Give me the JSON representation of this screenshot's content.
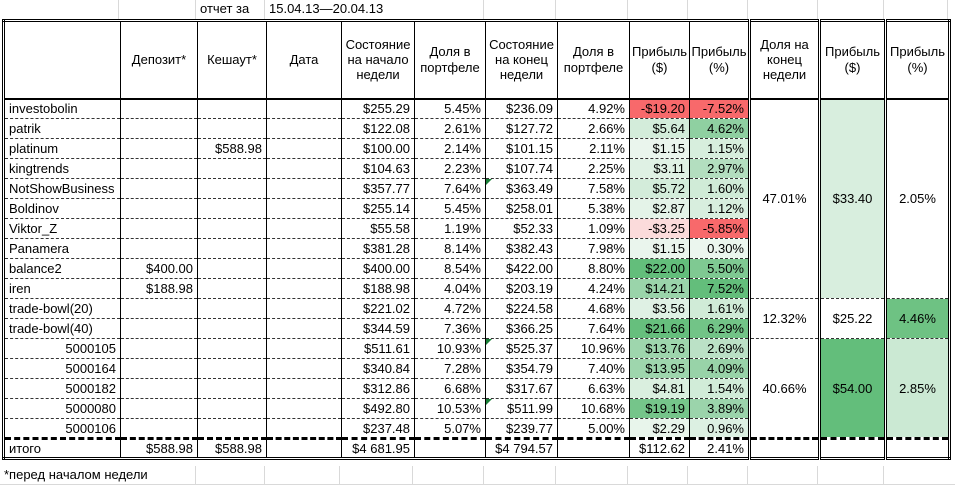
{
  "report": {
    "label": "отчет за",
    "period": "15.04.13—20.04.13"
  },
  "columns": [
    "Депозит*",
    "Кешаут*",
    "Дата",
    "Состояние на начало недели",
    "Доля в портфеле",
    "Состояние на конец недели",
    "Доля в портфеле",
    "Прибыль ($)",
    "Прибыль (%)",
    "Доля на конец недели",
    "Прибыль ($)",
    "Прибыль (%)"
  ],
  "rows": [
    {
      "name": "investobolin",
      "deposit": "",
      "cashout": "",
      "date": "",
      "begin": "$255.29",
      "begin_share": "5.45%",
      "end": "$236.09",
      "end_share": "4.92%",
      "profit_usd": "-$19.20",
      "profit_pct": "-7.52%",
      "usd_bg": "#F8696B",
      "pct_bg": "#F8696B",
      "name_right": false,
      "note_end": false
    },
    {
      "name": "patrik",
      "deposit": "",
      "cashout": "",
      "date": "",
      "begin": "$122.08",
      "begin_share": "2.61%",
      "end": "$127.72",
      "end_share": "2.66%",
      "profit_usd": "$5.64",
      "profit_pct": "4.62%",
      "usd_bg": "#D3ECDA",
      "pct_bg": "#8FD0A1",
      "name_right": false,
      "note_end": false
    },
    {
      "name": "platinum",
      "deposit": "",
      "cashout": "$588.98",
      "date": "",
      "begin": "$100.00",
      "begin_share": "2.14%",
      "end": "$101.15",
      "end_share": "2.11%",
      "profit_usd": "$1.15",
      "profit_pct": "1.15%",
      "usd_bg": "#EAF5ED",
      "pct_bg": "#D7EEDD",
      "name_right": false,
      "note_end": false
    },
    {
      "name": "kingtrends",
      "deposit": "",
      "cashout": "",
      "date": "",
      "begin": "$104.63",
      "begin_share": "2.23%",
      "end": "$107.74",
      "end_share": "2.25%",
      "profit_usd": "$3.11",
      "profit_pct": "2.97%",
      "usd_bg": "#DFF1E4",
      "pct_bg": "#B3DEBF",
      "name_right": false,
      "note_end": false
    },
    {
      "name": "NotShowBusiness",
      "deposit": "",
      "cashout": "",
      "date": "",
      "begin": "$357.77",
      "begin_share": "7.64%",
      "end": "$363.49",
      "end_share": "7.58%",
      "profit_usd": "$5.72",
      "profit_pct": "1.60%",
      "usd_bg": "#D3ECDA",
      "pct_bg": "#D0EBD7",
      "name_right": false,
      "note_end": true
    },
    {
      "name": "Boldinov",
      "deposit": "",
      "cashout": "",
      "date": "",
      "begin": "$255.14",
      "begin_share": "5.45%",
      "end": "$258.01",
      "end_share": "5.38%",
      "profit_usd": "$2.87",
      "profit_pct": "1.12%",
      "usd_bg": "#E4F3E8",
      "pct_bg": "#D8EEDE",
      "name_right": false,
      "note_end": false
    },
    {
      "name": "Viktor_Z",
      "deposit": "",
      "cashout": "",
      "date": "",
      "begin": "$55.58",
      "begin_share": "1.19%",
      "end": "$52.33",
      "end_share": "1.09%",
      "profit_usd": "-$3.25",
      "profit_pct": "-5.85%",
      "usd_bg": "#FBDBDB",
      "pct_bg": "#F8696B",
      "name_right": false,
      "note_end": false
    },
    {
      "name": "Panamera",
      "deposit": "",
      "cashout": "",
      "date": "",
      "begin": "$381.28",
      "begin_share": "8.14%",
      "end": "$382.43",
      "end_share": "7.98%",
      "profit_usd": "$1.15",
      "profit_pct": "0.30%",
      "usd_bg": "#EAF5ED",
      "pct_bg": "#EBF6EE",
      "name_right": false,
      "note_end": false
    },
    {
      "name": "balance2",
      "deposit": "$400.00",
      "cashout": "",
      "date": "",
      "begin": "$400.00",
      "begin_share": "8.54%",
      "end": "$422.00",
      "end_share": "8.80%",
      "profit_usd": "$22.00",
      "profit_pct": "5.50%",
      "usd_bg": "#63BE7B",
      "pct_bg": "#7FC992",
      "name_right": false,
      "note_end": false
    },
    {
      "name": "iren",
      "deposit": "$188.98",
      "cashout": "",
      "date": "",
      "begin": "$188.98",
      "begin_share": "4.04%",
      "end": "$203.19",
      "end_share": "4.24%",
      "profit_usd": "$14.21",
      "profit_pct": "7.52%",
      "usd_bg": "#9AD4AA",
      "pct_bg": "#63BE7B",
      "name_right": false,
      "note_end": false
    },
    {
      "name": "trade-bowl(20)",
      "deposit": "",
      "cashout": "",
      "date": "",
      "begin": "$221.02",
      "begin_share": "4.72%",
      "end": "$224.58",
      "end_share": "4.68%",
      "profit_usd": "$3.56",
      "profit_pct": "1.61%",
      "usd_bg": "#DFF1E4",
      "pct_bg": "#D0EBD7",
      "name_right": false,
      "note_end": false
    },
    {
      "name": "trade-bowl(40)",
      "deposit": "",
      "cashout": "",
      "date": "",
      "begin": "$344.59",
      "begin_share": "7.36%",
      "end": "$366.25",
      "end_share": "7.64%",
      "profit_usd": "$21.66",
      "profit_pct": "6.29%",
      "usd_bg": "#66BF7D",
      "pct_bg": "#72C487",
      "name_right": false,
      "note_end": false
    },
    {
      "name": "5000105",
      "deposit": "",
      "cashout": "",
      "date": "",
      "begin": "$511.61",
      "begin_share": "10.93%",
      "end": "$525.37",
      "end_share": "10.96%",
      "profit_usd": "$13.76",
      "profit_pct": "2.69%",
      "usd_bg": "#9ED6AD",
      "pct_bg": "#BBE1C6",
      "name_right": true,
      "note_end": true
    },
    {
      "name": "5000164",
      "deposit": "",
      "cashout": "",
      "date": "",
      "begin": "$340.84",
      "begin_share": "7.28%",
      "end": "$354.79",
      "end_share": "7.40%",
      "profit_usd": "$13.95",
      "profit_pct": "4.09%",
      "usd_bg": "#9ED6AD",
      "pct_bg": "#98D3A8",
      "name_right": true,
      "note_end": false
    },
    {
      "name": "5000182",
      "deposit": "",
      "cashout": "",
      "date": "",
      "begin": "$312.86",
      "begin_share": "6.68%",
      "end": "$317.67",
      "end_share": "6.63%",
      "profit_usd": "$4.81",
      "profit_pct": "1.54%",
      "usd_bg": "#DAEFDF",
      "pct_bg": "#D1ECD8",
      "name_right": true,
      "note_end": false
    },
    {
      "name": "5000080",
      "deposit": "",
      "cashout": "",
      "date": "",
      "begin": "$492.80",
      "begin_share": "10.53%",
      "end": "$511.99",
      "end_share": "10.68%",
      "profit_usd": "$19.19",
      "profit_pct": "3.89%",
      "usd_bg": "#75C58A",
      "pct_bg": "#9BD4AB",
      "name_right": true,
      "note_end": true
    },
    {
      "name": "5000106",
      "deposit": "",
      "cashout": "",
      "date": "",
      "begin": "$237.48",
      "begin_share": "5.07%",
      "end": "$239.77",
      "end_share": "5.00%",
      "profit_usd": "$2.29",
      "profit_pct": "0.96%",
      "usd_bg": "#E8F5EB",
      "pct_bg": "#DCF0E2",
      "name_right": true,
      "note_end": false
    }
  ],
  "groups": [
    {
      "rows": 10,
      "share": "47.01%",
      "profit_usd": "$33.40",
      "profit_pct": "2.05%",
      "share_bg": "",
      "usd_bg": "#D8EEDE",
      "pct_bg": ""
    },
    {
      "rows": 2,
      "share": "12.32%",
      "profit_usd": "$25.22",
      "profit_pct": "4.46%",
      "share_bg": "",
      "usd_bg": "",
      "pct_bg": "#6EC283"
    },
    {
      "rows": 5,
      "share": "40.66%",
      "profit_usd": "$54.00",
      "profit_pct": "2.85%",
      "share_bg": "",
      "usd_bg": "#63BE7B",
      "pct_bg": "#CBE9D3"
    }
  ],
  "total": {
    "label": "итого",
    "deposit": "$588.98",
    "cashout": "$588.98",
    "date": "",
    "begin": "$4 681.95",
    "begin_share": "",
    "end": "$4 794.57",
    "end_share": "",
    "profit_usd": "$112.62",
    "profit_pct": "2.41%"
  },
  "footnote": "*перед началом недели",
  "colors": {
    "positive_strong": "#63BE7B",
    "negative_strong": "#F8696B",
    "note_triangle": "#1a7f37",
    "gridline": "#d9d9d9"
  }
}
